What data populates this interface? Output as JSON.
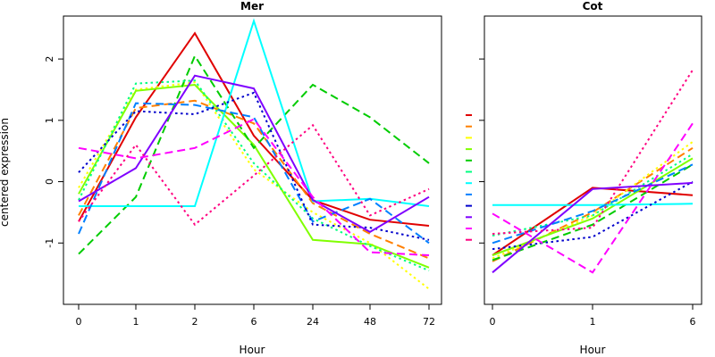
{
  "chart_data": [
    {
      "type": "line",
      "title": "Mer",
      "xlabel": "Hour",
      "ylabel": "centered expression",
      "categories": [
        "0",
        "1",
        "2",
        "6",
        "24",
        "48",
        "72"
      ],
      "yticks": [
        -1,
        0,
        1,
        2
      ],
      "ylim": [
        -2.0,
        2.7
      ],
      "grid": false,
      "series": [
        {
          "color": "#e00000",
          "dash": "solid",
          "values": [
            -0.65,
            1.05,
            2.42,
            0.75,
            -0.3,
            -0.62,
            -0.72
          ]
        },
        {
          "color": "#ff7f00",
          "dash": "dashed",
          "values": [
            -0.55,
            1.2,
            1.32,
            0.95,
            -0.35,
            -0.85,
            -1.25
          ]
        },
        {
          "color": "#ffff00",
          "dash": "dotted",
          "values": [
            -0.1,
            1.5,
            1.62,
            0.2,
            -0.5,
            -1.0,
            -1.75
          ]
        },
        {
          "color": "#80ff00",
          "dash": "solid",
          "values": [
            -0.2,
            1.48,
            1.58,
            0.6,
            -0.95,
            -1.02,
            -1.4
          ]
        },
        {
          "color": "#00cc00",
          "dash": "dashed",
          "values": [
            -1.18,
            -0.25,
            2.05,
            0.55,
            1.58,
            1.05,
            0.3
          ]
        },
        {
          "color": "#00ff80",
          "dash": "dotted",
          "values": [
            -0.3,
            1.6,
            1.65,
            0.3,
            -0.6,
            -1.05,
            -1.45
          ]
        },
        {
          "color": "#00ffff",
          "dash": "solid",
          "values": [
            -0.4,
            -0.4,
            -0.4,
            2.62,
            -0.32,
            -0.28,
            -0.4
          ]
        },
        {
          "color": "#0080ff",
          "dash": "dashed",
          "values": [
            -0.85,
            1.28,
            1.25,
            1.05,
            -0.65,
            -0.28,
            -1.0
          ]
        },
        {
          "color": "#0000cc",
          "dash": "dotted",
          "values": [
            0.15,
            1.15,
            1.1,
            1.45,
            -0.7,
            -0.75,
            -0.95
          ]
        },
        {
          "color": "#7f00ff",
          "dash": "solid",
          "values": [
            -0.32,
            0.22,
            1.73,
            1.52,
            -0.3,
            -0.82,
            -0.25
          ]
        },
        {
          "color": "#ff00ff",
          "dash": "dashed",
          "values": [
            0.55,
            0.38,
            0.55,
            1.02,
            -0.25,
            -1.15,
            -1.2
          ]
        },
        {
          "color": "#ff0080",
          "dash": "dotted",
          "values": [
            -0.65,
            0.6,
            -0.7,
            0.1,
            0.92,
            -0.55,
            -0.12
          ]
        }
      ]
    },
    {
      "type": "line",
      "title": "Cot",
      "xlabel": "Hour",
      "ylabel": "",
      "categories": [
        "0",
        "1",
        "6"
      ],
      "yticks": [
        -1,
        0,
        1,
        2
      ],
      "ylim": [
        -2.0,
        2.7
      ],
      "grid": false,
      "series": [
        {
          "color": "#e00000",
          "dash": "solid",
          "values": [
            -1.2,
            -0.1,
            -0.22
          ]
        },
        {
          "color": "#ff7f00",
          "dash": "dashed",
          "values": [
            -1.3,
            -0.5,
            0.55
          ]
        },
        {
          "color": "#ffff00",
          "dash": "dotted",
          "values": [
            -1.25,
            -0.55,
            0.65
          ]
        },
        {
          "color": "#80ff00",
          "dash": "solid",
          "values": [
            -1.2,
            -0.6,
            0.38
          ]
        },
        {
          "color": "#00cc00",
          "dash": "dashed",
          "values": [
            -1.28,
            -0.7,
            0.28
          ]
        },
        {
          "color": "#00ff80",
          "dash": "dotted",
          "values": [
            -0.88,
            -0.55,
            0.45
          ]
        },
        {
          "color": "#00ffff",
          "dash": "solid",
          "values": [
            -0.38,
            -0.38,
            -0.36
          ]
        },
        {
          "color": "#0080ff",
          "dash": "dashed",
          "values": [
            -1.0,
            -0.48,
            0.28
          ]
        },
        {
          "color": "#0000cc",
          "dash": "dotted",
          "values": [
            -1.1,
            -0.9,
            0.0
          ]
        },
        {
          "color": "#7f00ff",
          "dash": "solid",
          "values": [
            -1.48,
            -0.12,
            -0.02
          ]
        },
        {
          "color": "#ff00ff",
          "dash": "dashed",
          "values": [
            -0.52,
            -1.48,
            0.95
          ]
        },
        {
          "color": "#ff0080",
          "dash": "dotted",
          "values": [
            -0.85,
            -0.75,
            1.82
          ]
        }
      ]
    }
  ]
}
